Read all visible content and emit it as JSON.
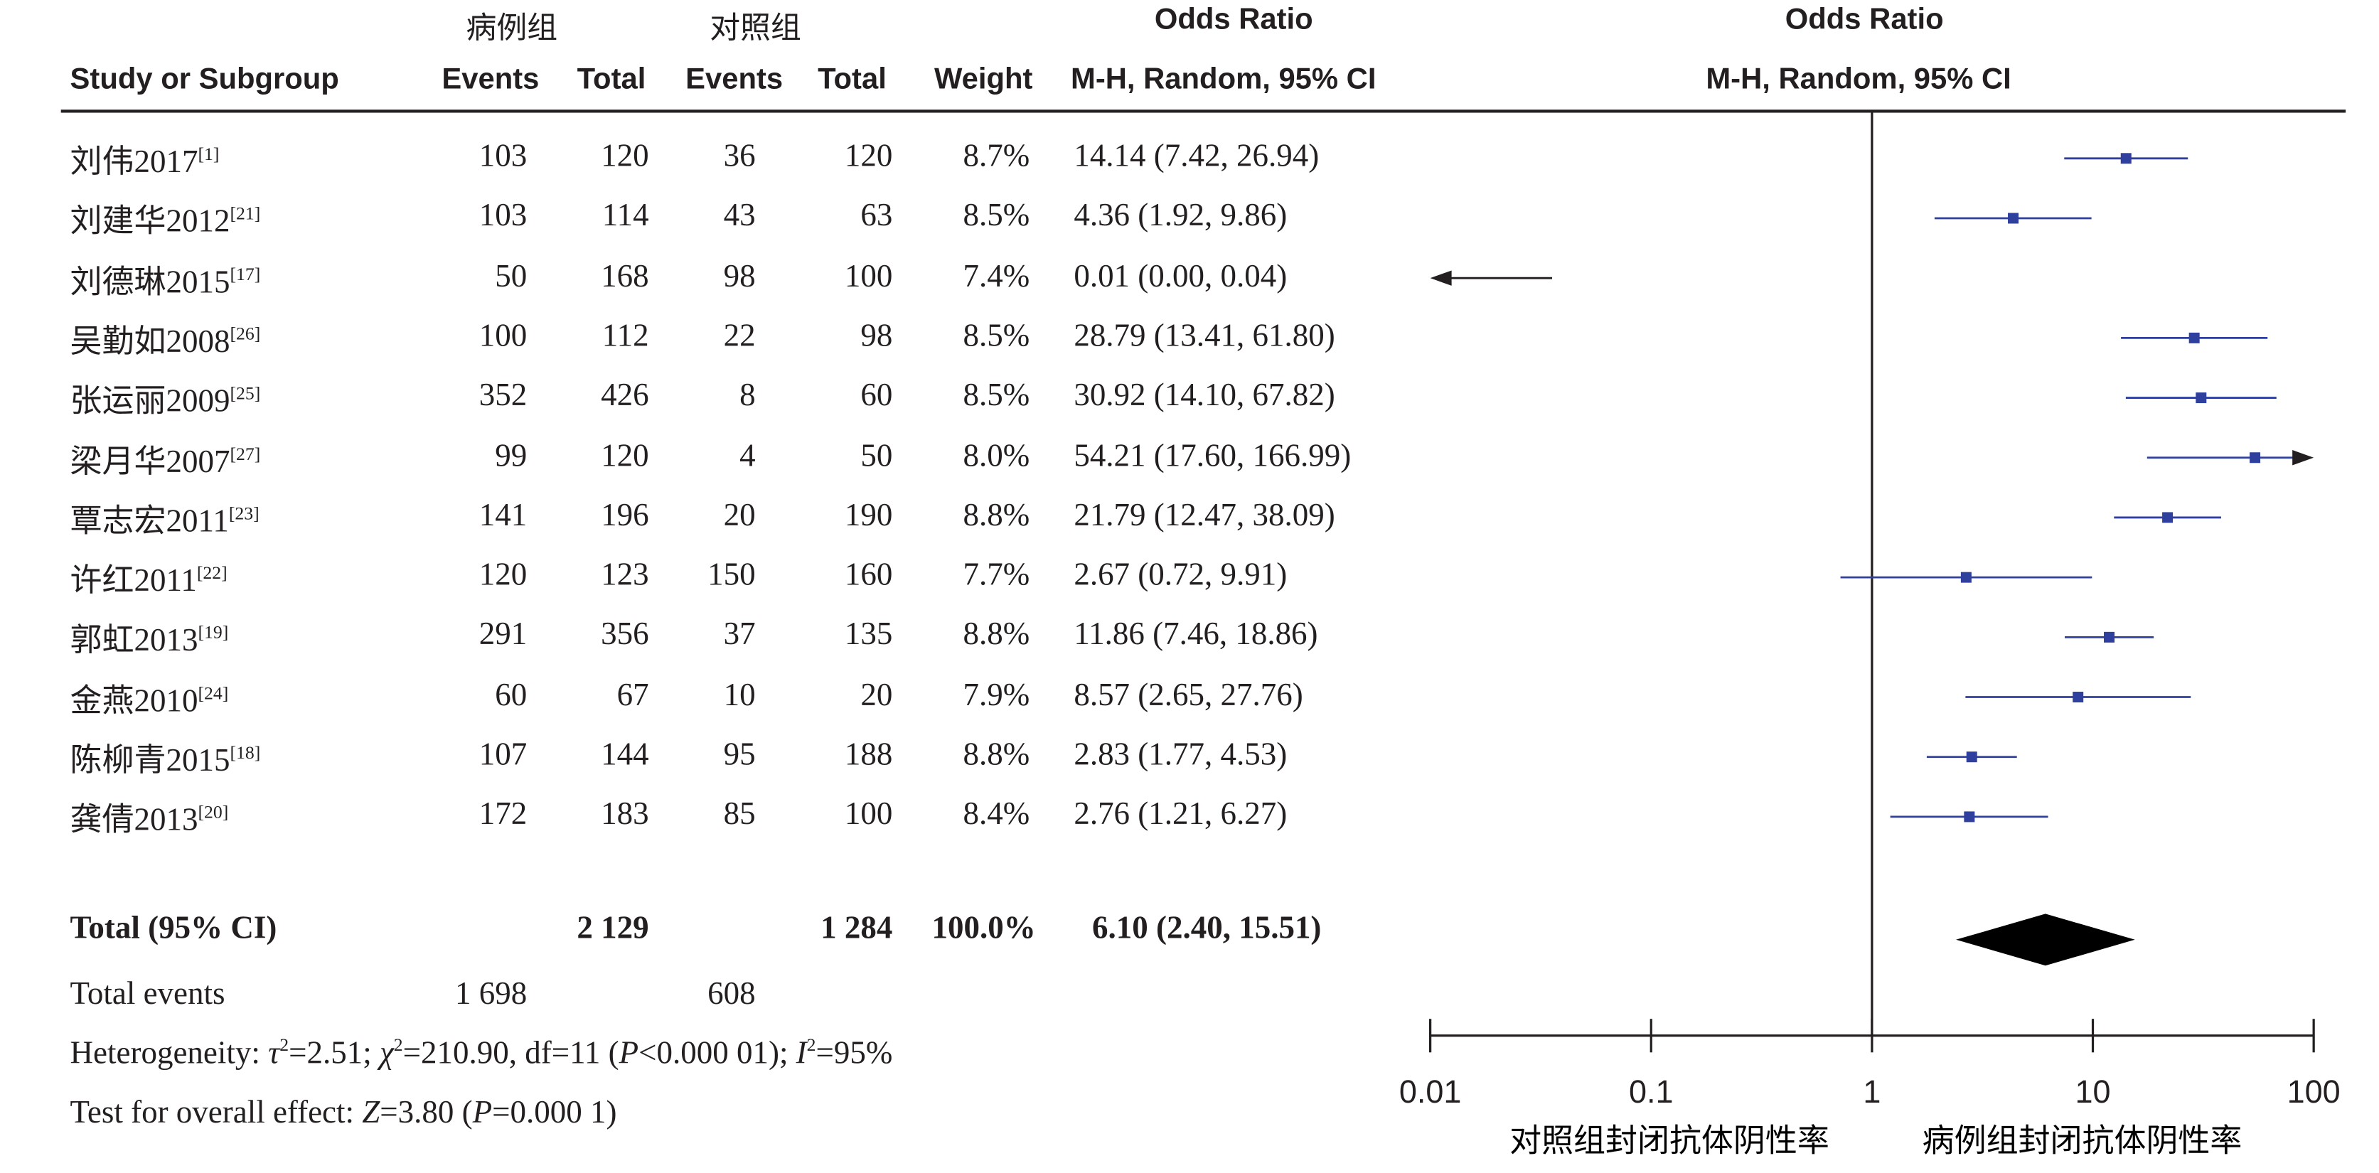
{
  "header": {
    "group_case": "病例组",
    "group_control": "对照组",
    "col_study": "Study or Subgroup",
    "col_events_case": "Events",
    "col_total_case": "Total",
    "col_events_ctrl": "Events",
    "col_total_ctrl": "Total",
    "col_weight": "Weight",
    "col_or_title": "Odds Ratio",
    "col_or_method": "M-H, Random, 95% CI",
    "plot_title": "Odds Ratio",
    "plot_method": "M-H, Random, 95% CI"
  },
  "studies": [
    {
      "name": "刘伟2017",
      "ref": "[1]",
      "ev1": "103",
      "tot1": "120",
      "ev2": "36",
      "tot2": "120",
      "weight": "8.7%",
      "ci_text": "14.14 (7.42, 26.94)"
    },
    {
      "name": "刘建华2012",
      "ref": "[21]",
      "ev1": "103",
      "tot1": "114",
      "ev2": "43",
      "tot2": "63",
      "weight": "8.5%",
      "ci_text": "4.36 (1.92, 9.86)"
    },
    {
      "name": "刘德琳2015",
      "ref": "[17]",
      "ev1": "50",
      "tot1": "168",
      "ev2": "98",
      "tot2": "100",
      "weight": "7.4%",
      "ci_text": "0.01 (0.00, 0.04)"
    },
    {
      "name": "吴勤如2008",
      "ref": "[26]",
      "ev1": "100",
      "tot1": "112",
      "ev2": "22",
      "tot2": "98",
      "weight": "8.5%",
      "ci_text": "28.79 (13.41, 61.80)"
    },
    {
      "name": "张运丽2009",
      "ref": "[25]",
      "ev1": "352",
      "tot1": "426",
      "ev2": "8",
      "tot2": "60",
      "weight": "8.5%",
      "ci_text": "30.92 (14.10, 67.82)"
    },
    {
      "name": "梁月华2007",
      "ref": "[27]",
      "ev1": "99",
      "tot1": "120",
      "ev2": "4",
      "tot2": "50",
      "weight": "8.0%",
      "ci_text": "54.21 (17.60, 166.99)"
    },
    {
      "name": "覃志宏2011",
      "ref": "[23]",
      "ev1": "141",
      "tot1": "196",
      "ev2": "20",
      "tot2": "190",
      "weight": "8.8%",
      "ci_text": "21.79 (12.47, 38.09)"
    },
    {
      "name": "许红2011",
      "ref": "[22]",
      "ev1": "120",
      "tot1": "123",
      "ev2": "150",
      "tot2": "160",
      "weight": "7.7%",
      "ci_text": "2.67 (0.72, 9.91)"
    },
    {
      "name": "郭虹2013",
      "ref": "[19]",
      "ev1": "291",
      "tot1": "356",
      "ev2": "37",
      "tot2": "135",
      "weight": "8.8%",
      "ci_text": "11.86 (7.46, 18.86)"
    },
    {
      "name": "金燕2010",
      "ref": "[24]",
      "ev1": "60",
      "tot1": "67",
      "ev2": "10",
      "tot2": "20",
      "weight": "7.9%",
      "ci_text": "8.57 (2.65, 27.76)"
    },
    {
      "name": "陈柳青2015",
      "ref": "[18]",
      "ev1": "107",
      "tot1": "144",
      "ev2": "95",
      "tot2": "188",
      "weight": "8.8%",
      "ci_text": "2.83 (1.77, 4.53)"
    },
    {
      "name": "龚倩2013",
      "ref": "[20]",
      "ev1": "172",
      "tot1": "183",
      "ev2": "85",
      "tot2": "100",
      "weight": "8.4%",
      "ci_text": "2.76 (1.21, 6.27)"
    }
  ],
  "total": {
    "label": "Total (95% CI)",
    "tot1": "2 129",
    "tot2": "1 284",
    "weight": "100.0%",
    "ci_text": "6.10 (2.40, 15.51)"
  },
  "total_events": {
    "label": "Total events",
    "ev1": "1 698",
    "ev2": "608"
  },
  "heterogeneity": {
    "prefix": "Heterogeneity: ",
    "tau_sym": "τ",
    "tau_val": "=2.51; ",
    "chi_sym": "χ",
    "chi_val": "=210.90, df=11 (",
    "p_sym": "P",
    "p_val": "<0.000 01); ",
    "i_sym": "I",
    "i_val": "=95%"
  },
  "overall": {
    "prefix": "Test for overall effect: ",
    "z_sym": "Z",
    "z_val": "=3.80 (",
    "p_sym": "P",
    "p_val": "=0.000 1)"
  },
  "chart_data": {
    "type": "forest",
    "scale": "log",
    "xlim": [
      0.01,
      100
    ],
    "ticks": [
      "0.01",
      "0.1",
      "1",
      "10",
      "100"
    ],
    "xlabel_left": "对照组封闭抗体阴性率",
    "xlabel_right": "病例组封闭抗体阴性率",
    "marker_color": "#2e3f9e",
    "line_color": "#2e3f9e",
    "diamond_color": "#000000",
    "studies": [
      {
        "or": 14.14,
        "lo": 7.42,
        "hi": 26.94
      },
      {
        "or": 4.36,
        "lo": 1.92,
        "hi": 9.86
      },
      {
        "or": 0.01,
        "lo": 0.0,
        "hi": 0.04
      },
      {
        "or": 28.79,
        "lo": 13.41,
        "hi": 61.8
      },
      {
        "or": 30.92,
        "lo": 14.1,
        "hi": 67.82
      },
      {
        "or": 54.21,
        "lo": 17.6,
        "hi": 166.99
      },
      {
        "or": 21.79,
        "lo": 12.47,
        "hi": 38.09
      },
      {
        "or": 2.67,
        "lo": 0.72,
        "hi": 9.91
      },
      {
        "or": 11.86,
        "lo": 7.46,
        "hi": 18.86
      },
      {
        "or": 8.57,
        "lo": 2.65,
        "hi": 27.76
      },
      {
        "or": 2.83,
        "lo": 1.77,
        "hi": 4.53
      },
      {
        "or": 2.76,
        "lo": 1.21,
        "hi": 6.27
      }
    ],
    "pooled": {
      "or": 6.1,
      "lo": 2.4,
      "hi": 15.51
    }
  }
}
